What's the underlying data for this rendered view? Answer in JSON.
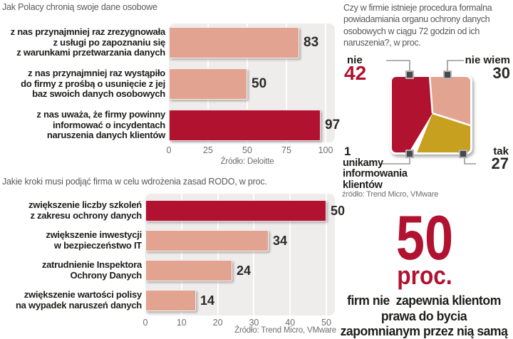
{
  "colors": {
    "red": "#b0122f",
    "salmon": "#e2a390",
    "gold": "#c7a01f",
    "white": "#ffffff",
    "plot_bg": "#eeedec",
    "ink": "#1d1d1b",
    "ink2": "#2a2a28",
    "gray_title": "#58585a",
    "gray_axis": "#6e6e70"
  },
  "chart_data": [
    {
      "id": "bar-chart-dane-osobowe",
      "type": "bar",
      "orientation": "horizontal",
      "title": "Jak Polacy chronią swoje dane osobowe",
      "categories": [
        [
          "z nas przynajmniej raz zrezygnowała",
          "z usługi po zapoznaniu się",
          "z warunkami przetwarzania danych"
        ],
        [
          "z nas przynajmniej raz wystąpiło",
          "do firmy z prośbą o usunięcie z jej",
          "baz swoich danych osobowych"
        ],
        [
          "z nas uważa, że firmy powinny",
          "informować o incydentach",
          "naruszenia danych klientów"
        ]
      ],
      "values": [
        83,
        50,
        97
      ],
      "bar_color_keys": [
        "salmon",
        "salmon",
        "red"
      ],
      "xlim": [
        0,
        100
      ],
      "xticks": [
        0,
        25,
        50,
        75,
        100
      ],
      "grid": true,
      "source": "Źródło: Deloitte"
    },
    {
      "id": "bar-chart-rodo",
      "type": "bar",
      "orientation": "horizontal",
      "title": "Jakie kroki musi podjąć firma w celu wdrożenia zasad RODO, w proc.",
      "categories": [
        [
          "zwiększenie liczby szkoleń",
          "z zakresu ochrony danych"
        ],
        [
          "zwiększenie inwestycji",
          "w bezpieczeństwo IT"
        ],
        [
          "zatrudnienie Inspektora",
          "Ochrony Danych"
        ],
        [
          "zwiększenie wartości polisy",
          "na wypadek naruszeń danych"
        ]
      ],
      "values": [
        50,
        34,
        24,
        14
      ],
      "bar_color_keys": [
        "red",
        "salmon",
        "salmon",
        "salmon"
      ],
      "xlim": [
        0,
        50
      ],
      "xticks": [
        0,
        10,
        20,
        30,
        40,
        50
      ],
      "grid": true,
      "source": "Źródło: Trend Micro, VMware"
    },
    {
      "id": "square-pie-procedura",
      "type": "pie",
      "title": "Czy w firmie istnieje procedura formalna powiadamiania organu ochrony danych osobowych w ciągu 72 godzin od ich naruszenia?, w proc.",
      "title_lines": [
        "Czy w firmie istnieje procedura formalna",
        "powiadamiania organu ochrony danych",
        "osobowych w ciągu 72 godzin od ich",
        "naruszenia?, w proc."
      ],
      "slices": [
        {
          "label": "nie",
          "value": 42,
          "color": "red"
        },
        {
          "label": "nie wiem",
          "value": 30,
          "color": "salmon"
        },
        {
          "label": "tak",
          "value": 27,
          "color": "gold"
        },
        {
          "label": "unikamy informowania klientów",
          "label_lines": [
            "unikamy",
            "informowania",
            "klientów"
          ],
          "value": 1,
          "color": "white"
        }
      ],
      "legend_position": "around",
      "source": "źródło: Trend Micro, VMware"
    }
  ],
  "highlight": {
    "number": "50",
    "unit": "proc.",
    "lines": [
      "firm nie  zapewnia klientom",
      "prawa do bycia",
      "zapomnianym przez nią samą"
    ]
  }
}
